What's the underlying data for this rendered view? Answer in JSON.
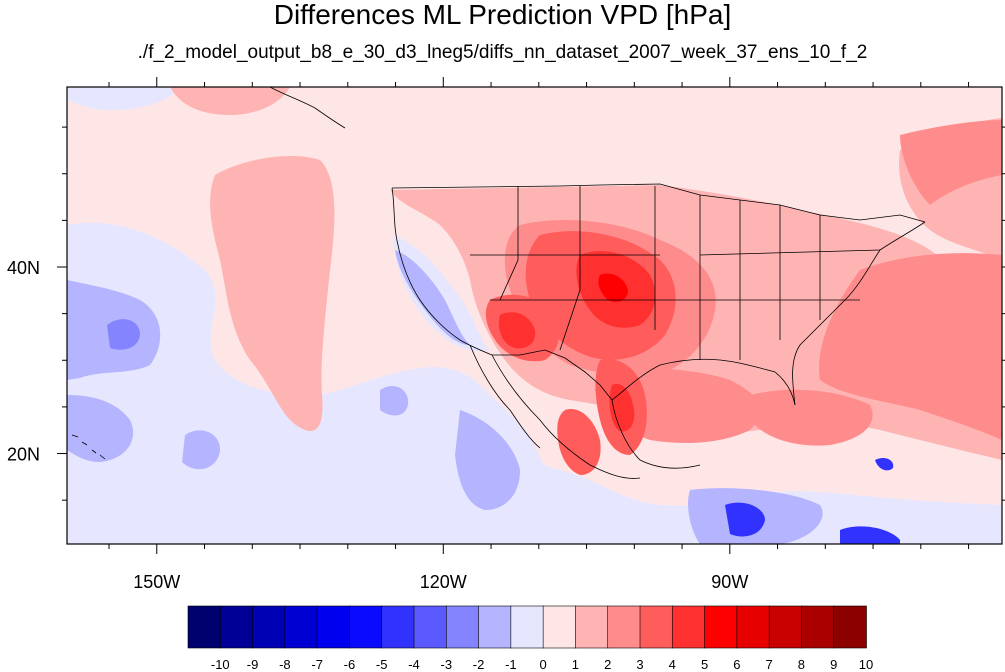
{
  "title": "Differences ML Prediction VPD [hPa]",
  "subtitle": "./f_2_model_output_b8_e_30_d3_lneg5/diffs_nn_dataset_2007_week_37_ens_10_f_2",
  "axes": {
    "x_ticks": [
      {
        "value": -150,
        "label": "150W"
      },
      {
        "value": -120,
        "label": "120W"
      },
      {
        "value": -90,
        "label": "90W"
      }
    ],
    "y_ticks": [
      {
        "value": 40,
        "label": "40N"
      },
      {
        "value": 20,
        "label": "20N"
      }
    ],
    "lon_range": [
      -159.4,
      -61.5
    ],
    "lat_range": [
      10.3,
      59.3
    ]
  },
  "colorbar": {
    "labels": [
      "-10",
      "-9",
      "-8",
      "-7",
      "-6",
      "-5",
      "-4",
      "-3",
      "-2",
      "-1",
      "0",
      "1",
      "2",
      "3",
      "4",
      "5",
      "6",
      "7",
      "8",
      "9",
      "10"
    ],
    "colors": [
      "#00006e",
      "#000096",
      "#0000b4",
      "#0000d2",
      "#0000ee",
      "#0a0aff",
      "#3232ff",
      "#5a5aff",
      "#8484ff",
      "#b4b4ff",
      "#e6e6ff",
      "#ffe6e6",
      "#ffb4b4",
      "#ff8c8c",
      "#ff5c5c",
      "#ff3030",
      "#ff0000",
      "#e60000",
      "#c80000",
      "#aa0000",
      "#8c0000"
    ]
  },
  "legend_colors": {
    "background_pos": "#ffe6e6",
    "background_neg": "#e6e6ff",
    "state_borders": "#000000"
  }
}
